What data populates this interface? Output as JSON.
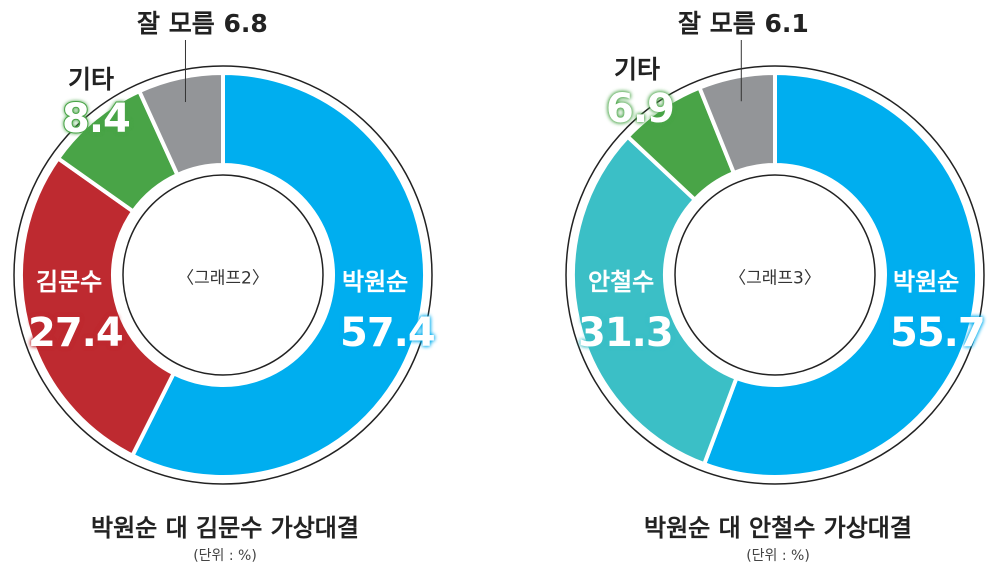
{
  "chart_data": [
    {
      "type": "pie",
      "variant": "donut",
      "center_label": "〈그래프2〉",
      "title": "박원순 대 김문수 가상대결",
      "unit": "(단위 : %)",
      "slices": [
        {
          "label": "박원순",
          "value": 57.4,
          "value_text": "57.4",
          "color": "#00AEEF"
        },
        {
          "label": "김문수",
          "value": 27.4,
          "value_text": "27.4",
          "color": "#BE2A30"
        },
        {
          "label": "기타",
          "value": 8.4,
          "value_text": "8.4",
          "color": "#49A447"
        },
        {
          "label": "잘 모름",
          "value": 6.8,
          "value_text": "6.8",
          "color": "#939598"
        }
      ]
    },
    {
      "type": "pie",
      "variant": "donut",
      "center_label": "〈그래프3〉",
      "title": "박원순 대 안철수 가상대결",
      "unit": "(단위 : %)",
      "slices": [
        {
          "label": "박원순",
          "value": 55.7,
          "value_text": "55.7",
          "color": "#00AEEF"
        },
        {
          "label": "안철수",
          "value": 31.3,
          "value_text": "31.3",
          "color": "#3BBFC6"
        },
        {
          "label": "기타",
          "value": 6.9,
          "value_text": "6.9",
          "color": "#49A447"
        },
        {
          "label": "잘 모름",
          "value": 6.1,
          "value_text": "6.1",
          "color": "#939598"
        }
      ]
    }
  ]
}
